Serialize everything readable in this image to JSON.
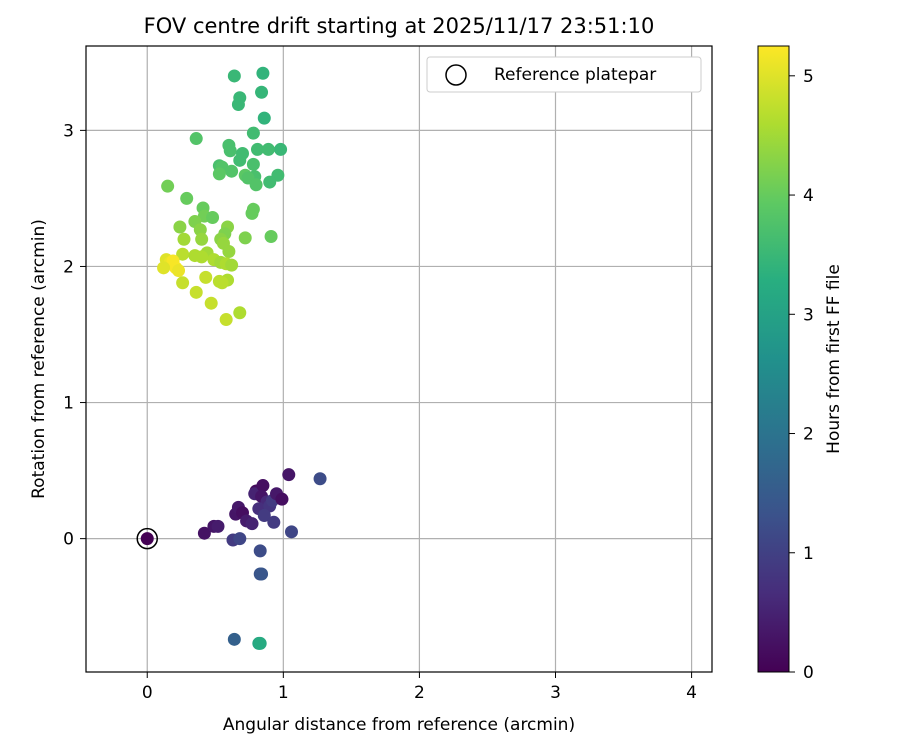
{
  "chart_data": {
    "type": "scatter",
    "title": "FOV centre drift starting at 2025/11/17 23:51:10",
    "xlabel": "Angular distance from reference (arcmin)",
    "ylabel": "Rotation from reference (arcmin)",
    "xlim": [
      -0.45,
      4.15
    ],
    "ylim": [
      -0.98,
      3.62
    ],
    "xticks": [
      "0",
      "1",
      "2",
      "3",
      "4"
    ],
    "yticks": [
      "0",
      "1",
      "2",
      "3"
    ],
    "grid": true,
    "legend": {
      "label": "Reference platepar",
      "placement": "top-right"
    },
    "colorbar": {
      "label": "Hours from first FF file",
      "colormap": "viridis",
      "range": [
        0,
        5.25
      ],
      "ticks": [
        "0",
        "1",
        "2",
        "3",
        "4",
        "5"
      ]
    },
    "reference_point": {
      "x": 0,
      "y": 0,
      "c": 0
    },
    "points": [
      {
        "x": 0.42,
        "y": 0.04,
        "c": 0.25
      },
      {
        "x": 0.49,
        "y": 0.09,
        "c": 0.3
      },
      {
        "x": 0.52,
        "y": 0.09,
        "c": 0.4
      },
      {
        "x": 0.65,
        "y": 0.18,
        "c": 0.3
      },
      {
        "x": 0.67,
        "y": 0.23,
        "c": 0.35
      },
      {
        "x": 0.7,
        "y": 0.19,
        "c": 0.2
      },
      {
        "x": 0.73,
        "y": 0.13,
        "c": 0.4
      },
      {
        "x": 0.77,
        "y": 0.11,
        "c": 0.5
      },
      {
        "x": 0.8,
        "y": 0.35,
        "c": 0.15
      },
      {
        "x": 0.79,
        "y": 0.33,
        "c": 0.5
      },
      {
        "x": 0.85,
        "y": 0.39,
        "c": 0.2
      },
      {
        "x": 0.84,
        "y": 0.31,
        "c": 0.3
      },
      {
        "x": 0.88,
        "y": 0.27,
        "c": 0.6
      },
      {
        "x": 0.82,
        "y": 0.22,
        "c": 0.7
      },
      {
        "x": 0.9,
        "y": 0.24,
        "c": 0.8
      },
      {
        "x": 0.92,
        "y": 0.28,
        "c": 0.9
      },
      {
        "x": 0.95,
        "y": 0.33,
        "c": 0.35
      },
      {
        "x": 0.99,
        "y": 0.29,
        "c": 0.2
      },
      {
        "x": 1.04,
        "y": 0.47,
        "c": 0.3
      },
      {
        "x": 0.86,
        "y": 0.17,
        "c": 0.9
      },
      {
        "x": 0.93,
        "y": 0.12,
        "c": 0.9
      },
      {
        "x": 1.06,
        "y": 0.05,
        "c": 1.1
      },
      {
        "x": 1.27,
        "y": 0.44,
        "c": 1.2
      },
      {
        "x": 0.63,
        "y": -0.01,
        "c": 0.9
      },
      {
        "x": 0.68,
        "y": 0.0,
        "c": 1.1
      },
      {
        "x": 0.83,
        "y": -0.09,
        "c": 1.2
      },
      {
        "x": 0.83,
        "y": -0.26,
        "c": 1.35
      },
      {
        "x": 0.84,
        "y": -0.26,
        "c": 1.4
      },
      {
        "x": 0.64,
        "y": -0.74,
        "c": 1.6
      },
      {
        "x": 0.82,
        "y": -0.77,
        "c": 3.1
      },
      {
        "x": 0.83,
        "y": -0.77,
        "c": 3.2
      },
      {
        "x": 0.64,
        "y": 3.4,
        "c": 3.5
      },
      {
        "x": 0.85,
        "y": 3.42,
        "c": 3.4
      },
      {
        "x": 0.84,
        "y": 3.28,
        "c": 3.45
      },
      {
        "x": 0.68,
        "y": 3.24,
        "c": 3.5
      },
      {
        "x": 0.67,
        "y": 3.19,
        "c": 3.5
      },
      {
        "x": 0.86,
        "y": 3.09,
        "c": 3.4
      },
      {
        "x": 0.78,
        "y": 2.98,
        "c": 3.6
      },
      {
        "x": 0.36,
        "y": 2.94,
        "c": 3.8
      },
      {
        "x": 0.6,
        "y": 2.89,
        "c": 3.7
      },
      {
        "x": 0.61,
        "y": 2.85,
        "c": 3.7
      },
      {
        "x": 0.81,
        "y": 2.86,
        "c": 3.6
      },
      {
        "x": 0.89,
        "y": 2.86,
        "c": 3.6
      },
      {
        "x": 0.98,
        "y": 2.86,
        "c": 3.5
      },
      {
        "x": 0.7,
        "y": 2.83,
        "c": 3.6
      },
      {
        "x": 0.68,
        "y": 2.78,
        "c": 3.6
      },
      {
        "x": 0.78,
        "y": 2.75,
        "c": 3.7
      },
      {
        "x": 0.53,
        "y": 2.74,
        "c": 3.7
      },
      {
        "x": 0.55,
        "y": 2.73,
        "c": 3.8
      },
      {
        "x": 0.62,
        "y": 2.7,
        "c": 3.8
      },
      {
        "x": 0.53,
        "y": 2.68,
        "c": 3.9
      },
      {
        "x": 0.72,
        "y": 2.67,
        "c": 3.9
      },
      {
        "x": 0.79,
        "y": 2.66,
        "c": 3.7
      },
      {
        "x": 0.96,
        "y": 2.67,
        "c": 3.6
      },
      {
        "x": 0.74,
        "y": 2.65,
        "c": 3.8
      },
      {
        "x": 0.9,
        "y": 2.62,
        "c": 3.6
      },
      {
        "x": 0.8,
        "y": 2.6,
        "c": 3.8
      },
      {
        "x": 0.15,
        "y": 2.59,
        "c": 4.1
      },
      {
        "x": 0.29,
        "y": 2.5,
        "c": 4.0
      },
      {
        "x": 0.41,
        "y": 2.43,
        "c": 4.0
      },
      {
        "x": 0.78,
        "y": 2.42,
        "c": 4.0
      },
      {
        "x": 0.77,
        "y": 2.39,
        "c": 4.0
      },
      {
        "x": 0.42,
        "y": 2.37,
        "c": 4.1
      },
      {
        "x": 0.48,
        "y": 2.36,
        "c": 4.0
      },
      {
        "x": 0.35,
        "y": 2.33,
        "c": 4.2
      },
      {
        "x": 0.24,
        "y": 2.29,
        "c": 4.3
      },
      {
        "x": 0.59,
        "y": 2.29,
        "c": 4.3
      },
      {
        "x": 0.39,
        "y": 2.27,
        "c": 4.3
      },
      {
        "x": 0.57,
        "y": 2.24,
        "c": 4.2
      },
      {
        "x": 0.91,
        "y": 2.22,
        "c": 4.0
      },
      {
        "x": 0.72,
        "y": 2.21,
        "c": 4.2
      },
      {
        "x": 0.54,
        "y": 2.2,
        "c": 4.3
      },
      {
        "x": 0.27,
        "y": 2.2,
        "c": 4.5
      },
      {
        "x": 0.4,
        "y": 2.2,
        "c": 4.4
      },
      {
        "x": 0.56,
        "y": 2.17,
        "c": 4.4
      },
      {
        "x": 0.6,
        "y": 2.11,
        "c": 4.4
      },
      {
        "x": 0.44,
        "y": 2.1,
        "c": 4.5
      },
      {
        "x": 0.26,
        "y": 2.09,
        "c": 4.7
      },
      {
        "x": 0.35,
        "y": 2.08,
        "c": 4.6
      },
      {
        "x": 0.4,
        "y": 2.07,
        "c": 4.6
      },
      {
        "x": 0.49,
        "y": 2.05,
        "c": 4.6
      },
      {
        "x": 0.54,
        "y": 2.03,
        "c": 4.5
      },
      {
        "x": 0.58,
        "y": 2.02,
        "c": 4.6
      },
      {
        "x": 0.62,
        "y": 2.01,
        "c": 4.5
      },
      {
        "x": 0.14,
        "y": 2.05,
        "c": 5.0
      },
      {
        "x": 0.17,
        "y": 2.03,
        "c": 5.1
      },
      {
        "x": 0.19,
        "y": 2.04,
        "c": 5.2
      },
      {
        "x": 0.21,
        "y": 1.99,
        "c": 5.2
      },
      {
        "x": 0.12,
        "y": 1.99,
        "c": 5.0
      },
      {
        "x": 0.23,
        "y": 1.97,
        "c": 5.1
      },
      {
        "x": 0.43,
        "y": 1.92,
        "c": 4.8
      },
      {
        "x": 0.53,
        "y": 1.89,
        "c": 4.7
      },
      {
        "x": 0.59,
        "y": 1.9,
        "c": 4.6
      },
      {
        "x": 0.26,
        "y": 1.88,
        "c": 4.8
      },
      {
        "x": 0.55,
        "y": 1.88,
        "c": 4.7
      },
      {
        "x": 0.36,
        "y": 1.81,
        "c": 4.8
      },
      {
        "x": 0.47,
        "y": 1.73,
        "c": 4.8
      },
      {
        "x": 0.68,
        "y": 1.66,
        "c": 4.6
      },
      {
        "x": 0.58,
        "y": 1.61,
        "c": 4.8
      }
    ]
  }
}
